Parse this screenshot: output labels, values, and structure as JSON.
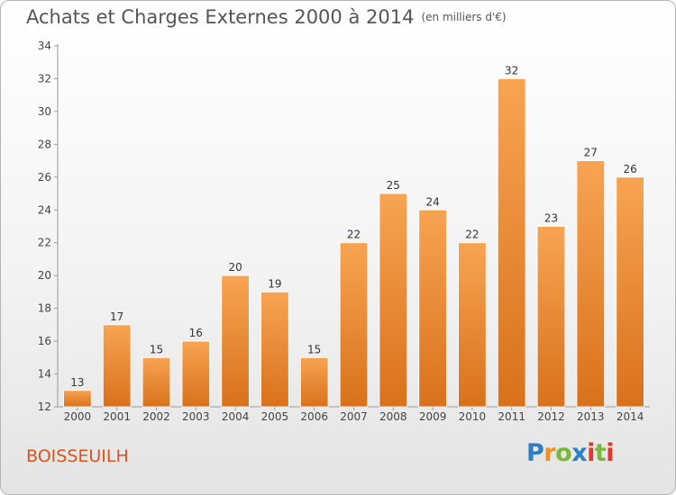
{
  "header": {
    "title": "Achats et Charges Externes 2000 à 2014",
    "subtitle": "(en milliers d'€)"
  },
  "footer": {
    "commune": "BOISSEUILH",
    "brand_letters": [
      "P",
      "r",
      "o",
      "x",
      "i",
      "t",
      "i"
    ]
  },
  "colors": {
    "bar_light": "#f7a452",
    "bar_dark": "#d9711c",
    "commune_text": "#d9541e"
  },
  "chart_data": {
    "type": "bar",
    "title": "Achats et Charges Externes 2000 à 2014",
    "subtitle": "(en milliers d'€)",
    "categories": [
      "2000",
      "2001",
      "2002",
      "2003",
      "2004",
      "2005",
      "2006",
      "2007",
      "2008",
      "2009",
      "2010",
      "2011",
      "2012",
      "2013",
      "2014"
    ],
    "values": [
      13,
      17,
      15,
      16,
      20,
      19,
      15,
      22,
      25,
      24,
      22,
      32,
      23,
      27,
      26
    ],
    "ylim": [
      12,
      34
    ],
    "yticks": [
      12,
      14,
      16,
      18,
      20,
      22,
      24,
      26,
      28,
      30,
      32,
      34
    ],
    "xlabel": "",
    "ylabel": "",
    "grid": false,
    "legend": "none"
  }
}
